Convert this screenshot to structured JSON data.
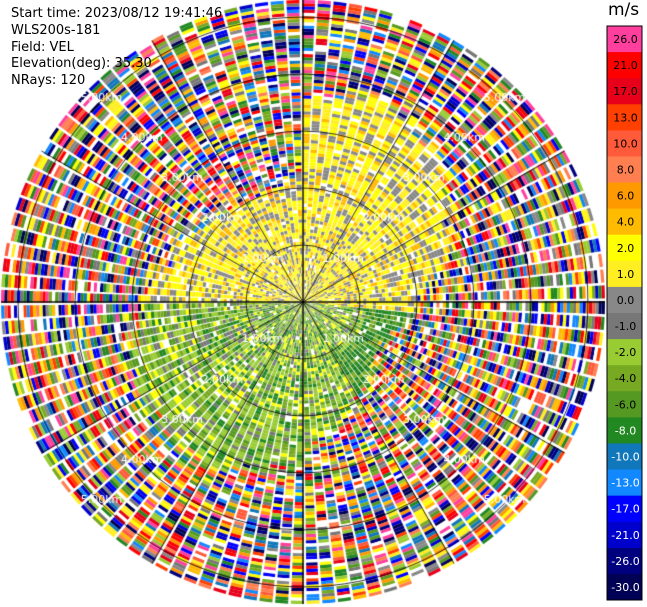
{
  "info": {
    "start_time": "Start time: 2023/08/12 19:41:46",
    "instrument": "WLS200s-181",
    "field": "Field: VEL",
    "elevation": "Elevation(deg): 35.30",
    "nrays": "NRays: 120"
  },
  "colorbar": {
    "unit": "m/s",
    "bins": [
      {
        "label": "26.0",
        "color": "#ff3f9e"
      },
      {
        "label": "21.0",
        "color": "#ff0000"
      },
      {
        "label": "17.0",
        "color": "#e8001a"
      },
      {
        "label": "13.0",
        "color": "#ff4000"
      },
      {
        "label": "10.0",
        "color": "#ff5a3a"
      },
      {
        "label": "8.0",
        "color": "#ff7f50"
      },
      {
        "label": "6.0",
        "color": "#ff9900"
      },
      {
        "label": "4.0",
        "color": "#ffbb00"
      },
      {
        "label": "2.0",
        "color": "#ffff00"
      },
      {
        "label": "1.0",
        "color": "#ffee22"
      },
      {
        "label": "0.0",
        "color": "#888888"
      },
      {
        "label": "-1.0",
        "color": "#777777"
      },
      {
        "label": "-2.0",
        "color": "#99cc33"
      },
      {
        "label": "-4.0",
        "color": "#77aa22"
      },
      {
        "label": "-6.0",
        "color": "#559922"
      },
      {
        "label": "-8.0",
        "color": "#228822"
      },
      {
        "label": "-10.0",
        "color": "#1177bb"
      },
      {
        "label": "-13.0",
        "color": "#1188ff"
      },
      {
        "label": "-17.0",
        "color": "#0000ff"
      },
      {
        "label": "-21.0",
        "color": "#0000cc"
      },
      {
        "label": "-26.0",
        "color": "#00007f"
      },
      {
        "label": "-30.0",
        "color": "#000055"
      }
    ]
  },
  "chart_data": {
    "type": "heatmap",
    "projection": "polar",
    "title": "",
    "field": "VEL",
    "units": "m/s",
    "elevation_deg": 35.3,
    "nrays": 120,
    "range_rings_km": [
      1.0,
      2.0,
      3.0,
      4.0,
      5.0
    ],
    "range_ring_labels": [
      "1.00km",
      "2.00km",
      "3.00km",
      "4.00km",
      "5.00km"
    ],
    "max_range_km": 5.3,
    "pattern_description_values": {
      "inner_north_velocity_ms": 2.0,
      "inner_south_velocity_ms": -3.0,
      "outer_noise": true
    },
    "grid": true
  }
}
